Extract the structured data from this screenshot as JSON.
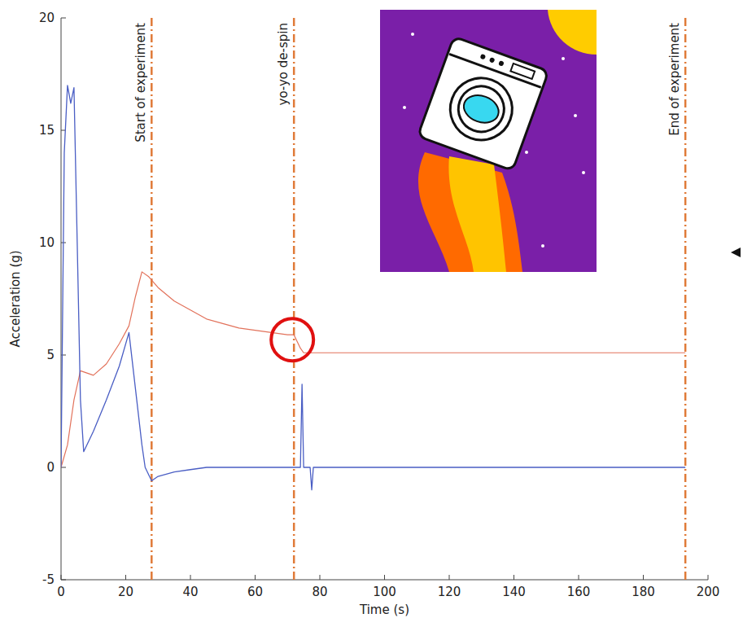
{
  "chart_data": {
    "type": "line",
    "x_label": "Time (s)",
    "y_label": "Acceleration (g)",
    "xlim": [
      0,
      200
    ],
    "xticks": [
      0,
      20,
      40,
      60,
      80,
      100,
      120,
      140,
      160,
      180,
      200
    ],
    "ylim": [
      -5,
      20
    ],
    "yticks": [
      -5,
      0,
      5,
      10,
      15,
      20
    ],
    "grid": false,
    "series": [
      {
        "color": "#e2725b",
        "x": [
          0,
          2,
          4,
          6,
          8,
          10,
          14,
          18,
          21,
          23,
          25,
          27,
          30,
          35,
          40,
          45,
          50,
          55,
          60,
          65,
          70,
          72,
          73,
          74,
          75,
          80,
          100,
          120,
          140,
          160,
          180,
          193
        ],
        "values": [
          0,
          1,
          3,
          4.3,
          4.2,
          4.1,
          4.6,
          5.5,
          6.3,
          7.6,
          8.7,
          8.5,
          8,
          7.4,
          7,
          6.6,
          6.4,
          6.2,
          6.1,
          6,
          5.9,
          5.9,
          5.6,
          5.3,
          5.1,
          5.1,
          5.1,
          5.1,
          5.1,
          5.1,
          5.1,
          5.1
        ]
      },
      {
        "color": "#4a5ec4",
        "x": [
          0,
          1,
          2,
          3,
          4,
          5,
          6,
          7,
          10,
          14,
          18,
          21,
          23,
          25,
          26,
          28,
          30,
          35,
          40,
          45,
          60,
          74,
          74.5,
          75,
          77,
          77.5,
          78,
          100,
          140,
          193
        ],
        "values": [
          0,
          14,
          17,
          16.2,
          16.9,
          10,
          3,
          0.7,
          1.6,
          3,
          4.5,
          6,
          3.5,
          1,
          0,
          -0.6,
          -0.4,
          -0.2,
          -0.1,
          0,
          0,
          0,
          3.7,
          0,
          0,
          -1,
          0,
          0,
          0,
          0
        ]
      }
    ],
    "annotations": [
      {
        "x": 28,
        "label": "Start of experiment"
      },
      {
        "x": 72,
        "label": "yo-yo de-spin"
      },
      {
        "x": 193,
        "label": "End  of experiment"
      }
    ]
  }
}
